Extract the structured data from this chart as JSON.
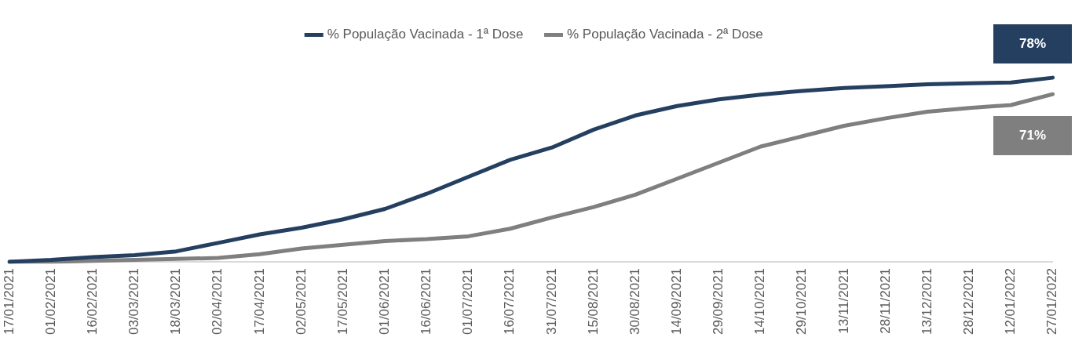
{
  "chart_data": {
    "type": "line",
    "categories": [
      "17/01/2021",
      "01/02/2021",
      "16/02/2021",
      "03/03/2021",
      "18/03/2021",
      "02/04/2021",
      "17/04/2021",
      "02/05/2021",
      "17/05/2021",
      "01/06/2021",
      "16/06/2021",
      "01/07/2021",
      "16/07/2021",
      "31/07/2021",
      "15/08/2021",
      "30/08/2021",
      "14/09/2021",
      "29/09/2021",
      "14/10/2021",
      "29/10/2021",
      "13/11/2021",
      "28/11/2021",
      "13/12/2021",
      "28/12/2021",
      "12/01/2022",
      "27/01/2022"
    ],
    "series": [
      {
        "name": "% População Vacinada - 1ª Dose",
        "color": "#243f60",
        "values": [
          0,
          0.8,
          2,
          2.8,
          4.4,
          8,
          11.6,
          14.4,
          18,
          22.4,
          28.8,
          36,
          43.2,
          48.4,
          56,
          62,
          66,
          68.8,
          70.8,
          72.4,
          73.6,
          74.4,
          75.2,
          75.6,
          76,
          78
        ],
        "value_labels": [
          null,
          null,
          null,
          null,
          null,
          null,
          null,
          null,
          null,
          null,
          null,
          null,
          null,
          null,
          null,
          null,
          null,
          null,
          null,
          null,
          null,
          null,
          null,
          null,
          null,
          "78%"
        ]
      },
      {
        "name": "% População Vacinada - 2ª Dose",
        "color": "#7f7f7f",
        "values": [
          0,
          0,
          0.4,
          0.8,
          1.2,
          1.6,
          3.2,
          5.6,
          7.2,
          8.8,
          9.6,
          10.8,
          14,
          18.8,
          23.2,
          28.4,
          35.2,
          42,
          48.8,
          53.2,
          57.6,
          60.8,
          63.6,
          65.2,
          66.4,
          71
        ],
        "value_labels": [
          null,
          null,
          null,
          null,
          null,
          null,
          null,
          null,
          null,
          null,
          null,
          null,
          null,
          null,
          null,
          null,
          null,
          null,
          null,
          null,
          null,
          null,
          null,
          null,
          null,
          "71%"
        ]
      }
    ],
    "tick_labels": "x",
    "grid": false,
    "legend": "top",
    "marker": "none",
    "line_style": "solid"
  }
}
